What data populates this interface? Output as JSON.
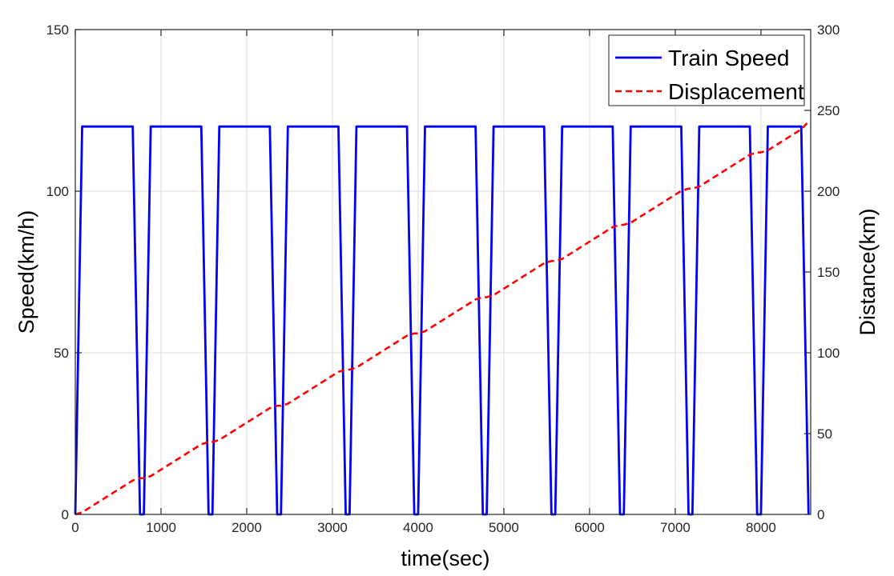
{
  "chart_data": {
    "type": "line",
    "xlabel": "time(sec)",
    "ylabel_left": "Speed(km/h)",
    "ylabel_right": "Distance(km)",
    "xlim": [
      0,
      8580
    ],
    "ylim_left": [
      0,
      150
    ],
    "ylim_right": [
      0,
      300
    ],
    "xticks": [
      0,
      1000,
      2000,
      3000,
      4000,
      5000,
      6000,
      7000,
      8000
    ],
    "yticks_left": [
      0,
      50,
      100,
      150
    ],
    "yticks_right": [
      0,
      50,
      100,
      150,
      200,
      250,
      300
    ],
    "grid": true,
    "legend_position": "top-right",
    "series": [
      {
        "name": "Train Speed",
        "axis": "left",
        "color": "#0000ff",
        "style": "solid",
        "x": [
          0,
          80,
          670,
          755,
          800,
          880,
          1470,
          1555,
          1600,
          1680,
          2270,
          2355,
          2400,
          2480,
          3070,
          3155,
          3200,
          3280,
          3870,
          3955,
          4000,
          4080,
          4670,
          4755,
          4800,
          4880,
          5470,
          5555,
          5600,
          5680,
          6270,
          6355,
          6400,
          6480,
          7070,
          7155,
          7200,
          7280,
          7870,
          7955,
          8000,
          8080,
          8470,
          8555
        ],
        "y": [
          0,
          120,
          120,
          0,
          0,
          120,
          120,
          0,
          0,
          120,
          120,
          0,
          0,
          120,
          120,
          0,
          0,
          120,
          120,
          0,
          0,
          120,
          120,
          0,
          0,
          120,
          120,
          0,
          0,
          120,
          120,
          0,
          0,
          120,
          120,
          0,
          0,
          120,
          120,
          0,
          0,
          120,
          120,
          0
        ]
      },
      {
        "name": "Displacement",
        "axis": "right",
        "color": "#ff0000",
        "style": "dashed",
        "x": [
          0,
          80,
          670,
          755,
          800,
          880,
          1470,
          1555,
          1600,
          1680,
          2270,
          2355,
          2400,
          2480,
          3070,
          3155,
          3200,
          3280,
          3870,
          3955,
          4000,
          4080,
          4670,
          4755,
          4800,
          4880,
          5470,
          5555,
          5600,
          5680,
          6270,
          6355,
          6400,
          6480,
          7070,
          7155,
          7200,
          7280,
          7870,
          7955,
          8000,
          8080,
          8470,
          8555
        ],
        "y": [
          0,
          1.3,
          21.0,
          22.4,
          22.4,
          23.7,
          43.4,
          44.8,
          44.8,
          46.1,
          65.8,
          67.2,
          67.2,
          68.5,
          88.2,
          89.6,
          89.6,
          90.9,
          110.6,
          112.0,
          112.0,
          113.3,
          133.0,
          134.4,
          134.4,
          135.7,
          155.4,
          156.8,
          156.8,
          158.1,
          177.8,
          179.2,
          179.2,
          180.5,
          200.2,
          201.6,
          201.6,
          202.9,
          222.6,
          224.0,
          224.0,
          225.3,
          238.3,
          243.0
        ]
      }
    ]
  }
}
